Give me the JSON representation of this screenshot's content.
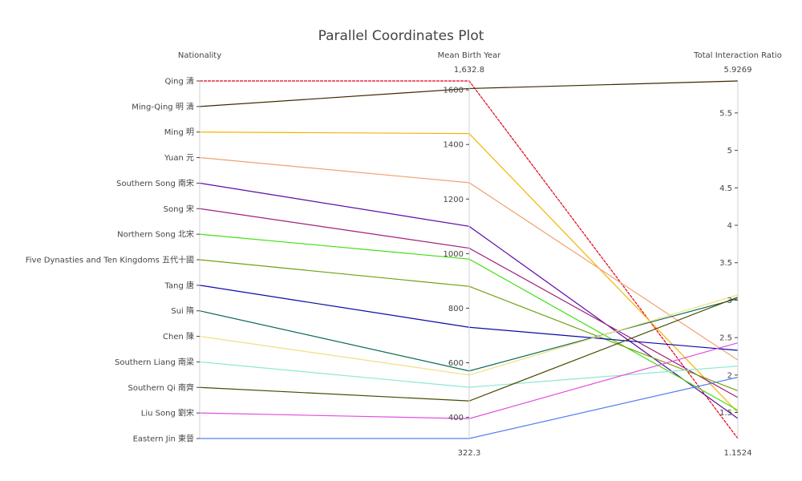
{
  "chart_data": {
    "type": "parallel_coordinates",
    "title": "Parallel Coordinates Plot",
    "axes": [
      {
        "name": "Nationality",
        "kind": "categorical",
        "categories": [
          "Qing 清",
          "Ming-Qing 明 清",
          "Ming 明",
          "Yuan 元",
          "Southern Song 南宋",
          "Song 宋",
          "Northern Song 北宋",
          "Five Dynasties and Ten Kingdoms 五代十國",
          "Tang 唐",
          "Sui 隋",
          "Chen 陳",
          "Southern Liang 南梁",
          "Southern Qi 南齊",
          "Liu Song 劉宋",
          "Eastern Jin 東晉"
        ]
      },
      {
        "name": "Mean Birth Year",
        "kind": "numeric",
        "range": [
          322.3,
          1632.8
        ],
        "range_labels": [
          "322.3",
          "1,632.8"
        ],
        "ticks": [
          400,
          600,
          800,
          1000,
          1200,
          1400,
          1600
        ]
      },
      {
        "name": "Total Interaction Ratio",
        "kind": "numeric",
        "range": [
          1.1524,
          5.9269
        ],
        "range_labels": [
          "1.1524",
          "5.9269"
        ],
        "ticks": [
          1.5,
          2,
          2.5,
          3,
          3.5,
          4,
          4.5,
          5,
          5.5
        ],
        "tick_labels": [
          "1.5",
          "2",
          "2.5",
          "3",
          "3.5",
          "4",
          "4.5",
          "5",
          "5.5"
        ]
      }
    ],
    "records": [
      {
        "nationality": "Qing 清",
        "mean_birth_year": 1632.8,
        "total_interaction_ratio": 1.1524,
        "color": "#e3001b",
        "dash": true
      },
      {
        "nationality": "Ming-Qing 明 清",
        "mean_birth_year": 1605,
        "total_interaction_ratio": 5.9269,
        "color": "#3b2a00",
        "dash": false
      },
      {
        "nationality": "Ming 明",
        "mean_birth_year": 1440,
        "total_interaction_ratio": 1.5,
        "color": "#f5b400",
        "dash": false
      },
      {
        "nationality": "Yuan 元",
        "mean_birth_year": 1260,
        "total_interaction_ratio": 2.2,
        "color": "#f0a070",
        "dash": false
      },
      {
        "nationality": "Southern Song 南宋",
        "mean_birth_year": 1100,
        "total_interaction_ratio": 1.42,
        "color": "#5a0aa5",
        "dash": false
      },
      {
        "nationality": "Song 宋",
        "mean_birth_year": 1020,
        "total_interaction_ratio": 1.7,
        "color": "#a0207a",
        "dash": false
      },
      {
        "nationality": "Northern Song 北宋",
        "mean_birth_year": 980,
        "total_interaction_ratio": 1.53,
        "color": "#40e010",
        "dash": false
      },
      {
        "nationality": "Five Dynasties and Ten Kingdoms 五代十國",
        "mean_birth_year": 880,
        "total_interaction_ratio": 1.79,
        "color": "#70a010",
        "dash": false
      },
      {
        "nationality": "Tang 唐",
        "mean_birth_year": 730,
        "total_interaction_ratio": 2.33,
        "color": "#0a0aaa",
        "dash": false
      },
      {
        "nationality": "Sui 隋",
        "mean_birth_year": 570,
        "total_interaction_ratio": 3.02,
        "color": "#0a6a5a",
        "dash": false
      },
      {
        "nationality": "Chen 陳",
        "mean_birth_year": 555,
        "total_interaction_ratio": 3.07,
        "color": "#f0e080",
        "dash": false
      },
      {
        "nationality": "Southern Liang 南梁",
        "mean_birth_year": 510,
        "total_interaction_ratio": 2.12,
        "color": "#90e8d0",
        "dash": false
      },
      {
        "nationality": "Southern Qi 南齊",
        "mean_birth_year": 460,
        "total_interaction_ratio": 3.04,
        "color": "#4a4a00",
        "dash": false
      },
      {
        "nationality": "Liu Song 劉宋",
        "mean_birth_year": 395,
        "total_interaction_ratio": 2.43,
        "color": "#e050e0",
        "dash": false
      },
      {
        "nationality": "Eastern Jin 東晉",
        "mean_birth_year": 322.3,
        "total_interaction_ratio": 1.97,
        "color": "#5080f0",
        "dash": false
      }
    ],
    "grid": false
  }
}
